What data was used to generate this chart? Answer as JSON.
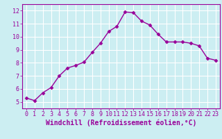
{
  "x": [
    0,
    1,
    2,
    3,
    4,
    5,
    6,
    7,
    8,
    9,
    10,
    11,
    12,
    13,
    14,
    15,
    16,
    17,
    18,
    19,
    20,
    21,
    22,
    23
  ],
  "y": [
    5.3,
    5.1,
    5.7,
    6.1,
    7.0,
    7.6,
    7.8,
    8.05,
    8.8,
    9.5,
    10.4,
    10.8,
    11.9,
    11.85,
    11.2,
    10.9,
    10.2,
    9.6,
    9.6,
    9.6,
    9.5,
    9.3,
    8.35,
    8.2
  ],
  "line_color": "#990099",
  "marker": "D",
  "marker_size": 2.5,
  "line_width": 1.0,
  "xlabel": "Windchill (Refroidissement éolien,°C)",
  "xlabel_fontsize": 7,
  "xlim": [
    -0.5,
    23.5
  ],
  "ylim": [
    4.5,
    12.5
  ],
  "yticks": [
    5,
    6,
    7,
    8,
    9,
    10,
    11,
    12
  ],
  "xticks": [
    0,
    1,
    2,
    3,
    4,
    5,
    6,
    7,
    8,
    9,
    10,
    11,
    12,
    13,
    14,
    15,
    16,
    17,
    18,
    19,
    20,
    21,
    22,
    23
  ],
  "bg_color": "#cceef2",
  "grid_color": "#ffffff",
  "tick_color": "#990099",
  "tick_fontsize": 6,
  "spine_color": "#990099"
}
